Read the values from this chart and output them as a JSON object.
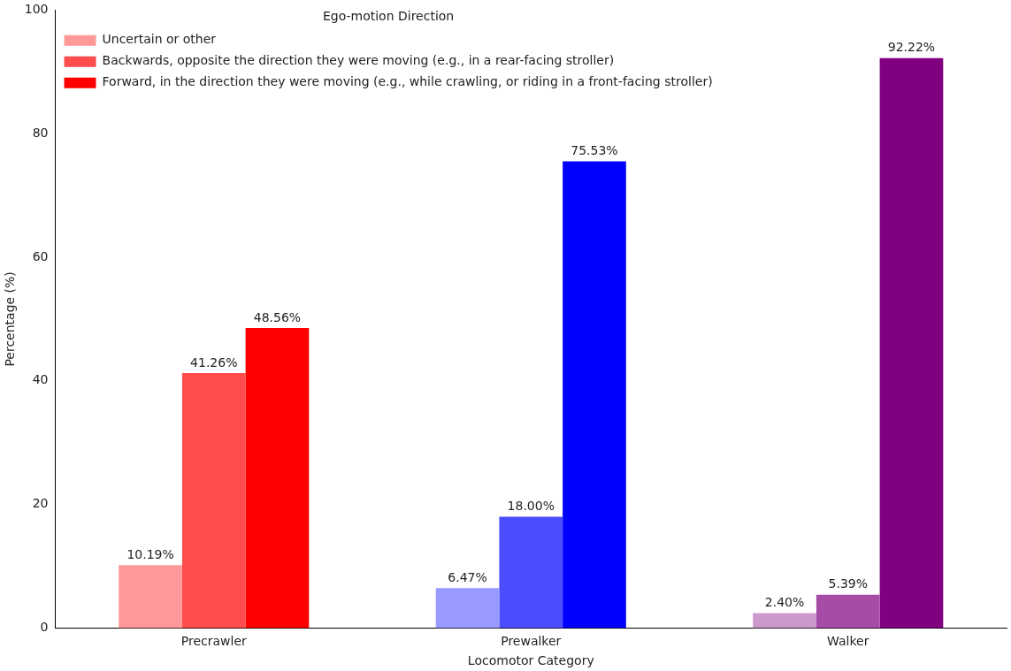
{
  "chart_data": {
    "type": "bar",
    "xlabel": "Locomotor Category",
    "ylabel": "Percentage (%)",
    "legend_title": "Ego-motion Direction",
    "legend": "top left",
    "grid": false,
    "categories": [
      "Precrawler",
      "Prewalker",
      "Walker"
    ],
    "ylim": [
      0,
      100
    ],
    "yticks": [
      0,
      20,
      40,
      60,
      80,
      100
    ],
    "series": [
      {
        "name": "Uncertain or other",
        "colors": [
          "#ff9999",
          "#9999ff",
          "#cc99cc"
        ],
        "values": [
          10.19,
          6.47,
          2.4
        ],
        "value_labels": [
          "10.19%",
          "6.47%",
          "2.40%"
        ]
      },
      {
        "name": "Backwards, opposite the direction they were moving (e.g., in a rear-facing stroller)",
        "colors": [
          "#ff4c4c",
          "#4c4cff",
          "#a64ca6"
        ],
        "values": [
          41.26,
          18.0,
          5.39
        ],
        "value_labels": [
          "41.26%",
          "18.00%",
          "5.39%"
        ]
      },
      {
        "name": "Forward, in the direction they were moving (e.g., while crawling, or riding in a front-facing stroller)",
        "colors": [
          "#ff0000",
          "#0000ff",
          "#800080"
        ],
        "values": [
          48.56,
          75.53,
          92.22
        ],
        "value_labels": [
          "48.56%",
          "75.53%",
          "92.22%"
        ]
      }
    ]
  }
}
